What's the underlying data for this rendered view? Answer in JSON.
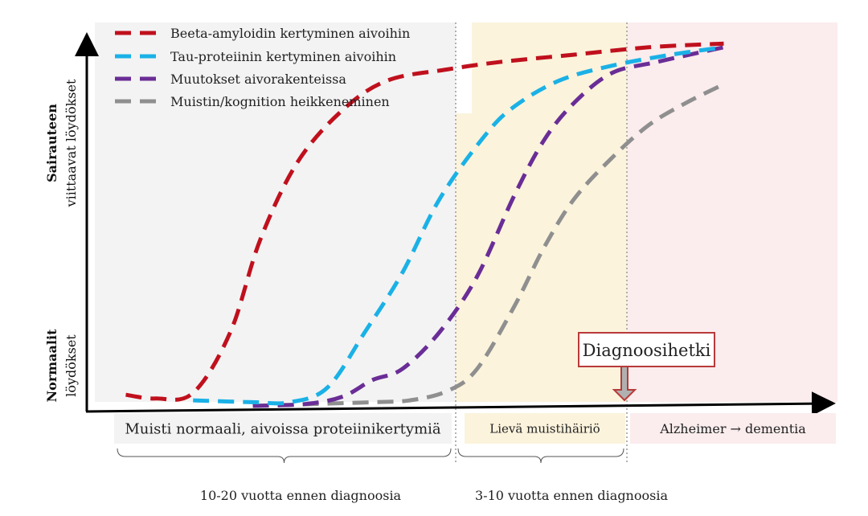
{
  "chart_data": {
    "type": "line",
    "y_axis_top_label_bold": "Sairauteen",
    "y_axis_top_label": "viittaavat löydökset",
    "y_axis_bottom_label_bold": "Normaalit",
    "y_axis_bottom_label": "löydökset",
    "phases": [
      {
        "label": "Muisti normaali, aivoissa proteiinikertymiä",
        "color": "#f3f3f3"
      },
      {
        "label": "Lievä muistihäiriö",
        "color": "#fbf3dc"
      },
      {
        "label": "Alzheimer → dementia",
        "color": "#fbeced"
      }
    ],
    "time_spans": [
      {
        "label": "10-20 vuotta ennen diagnoosia"
      },
      {
        "label": "3-10 vuotta ennen diagnoosia"
      }
    ],
    "diagnosis_label": "Diagnoosihetki",
    "series": [
      {
        "name": "Beeta-amyloidin kertyminen aivoihin",
        "color": "#c0101d",
        "points": [
          [
            0.05,
            0.03
          ],
          [
            0.09,
            0.02
          ],
          [
            0.14,
            0.035
          ],
          [
            0.19,
            0.2
          ],
          [
            0.23,
            0.45
          ],
          [
            0.28,
            0.66
          ],
          [
            0.34,
            0.8
          ],
          [
            0.4,
            0.88
          ],
          [
            0.48,
            0.91
          ],
          [
            0.55,
            0.93
          ],
          [
            0.65,
            0.95
          ],
          [
            0.75,
            0.97
          ],
          [
            0.85,
            0.98
          ]
        ]
      },
      {
        "name": "Tau-proteiinin kertyminen aivoihin",
        "color": "#1ab1e6",
        "points": [
          [
            0.14,
            0.015
          ],
          [
            0.22,
            0.01
          ],
          [
            0.27,
            0.01
          ],
          [
            0.32,
            0.05
          ],
          [
            0.37,
            0.2
          ],
          [
            0.42,
            0.36
          ],
          [
            0.47,
            0.56
          ],
          [
            0.53,
            0.73
          ],
          [
            0.57,
            0.81
          ],
          [
            0.63,
            0.88
          ],
          [
            0.7,
            0.92
          ],
          [
            0.78,
            0.95
          ],
          [
            0.85,
            0.97
          ]
        ]
      },
      {
        "name": "Muutokset aivorakenteissa",
        "color": "#6a2d96",
        "points": [
          [
            0.22,
            0.0
          ],
          [
            0.29,
            0.005
          ],
          [
            0.34,
            0.025
          ],
          [
            0.38,
            0.07
          ],
          [
            0.42,
            0.1
          ],
          [
            0.47,
            0.2
          ],
          [
            0.52,
            0.35
          ],
          [
            0.57,
            0.57
          ],
          [
            0.61,
            0.72
          ],
          [
            0.65,
            0.82
          ],
          [
            0.7,
            0.9
          ],
          [
            0.76,
            0.93
          ],
          [
            0.85,
            0.97
          ]
        ]
      },
      {
        "name": "Muistin/kognition heikkeneminen",
        "color": "#8f8f8f",
        "points": [
          [
            0.22,
            0.0
          ],
          [
            0.3,
            0.005
          ],
          [
            0.38,
            0.01
          ],
          [
            0.43,
            0.015
          ],
          [
            0.48,
            0.04
          ],
          [
            0.52,
            0.1
          ],
          [
            0.57,
            0.27
          ],
          [
            0.61,
            0.43
          ],
          [
            0.65,
            0.56
          ],
          [
            0.7,
            0.67
          ],
          [
            0.75,
            0.76
          ],
          [
            0.8,
            0.82
          ],
          [
            0.85,
            0.87
          ]
        ]
      }
    ]
  }
}
